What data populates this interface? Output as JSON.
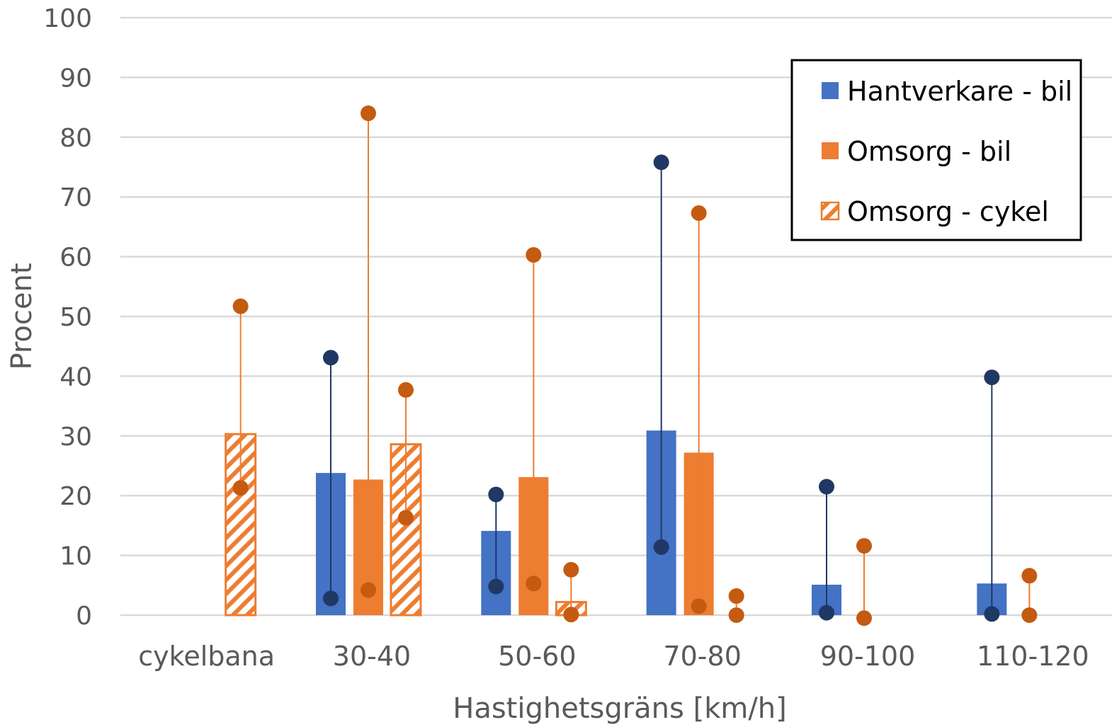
{
  "chart_data": {
    "type": "bar",
    "title": "",
    "xlabel": "Hastighetsgräns [km/h]",
    "ylabel": "Procent",
    "ylim": [
      0,
      100
    ],
    "yticks": [
      0,
      10,
      20,
      30,
      40,
      50,
      60,
      70,
      80,
      90,
      100
    ],
    "grid": true,
    "legend_position": "top-right",
    "categories": [
      "cykelbana",
      "30-40",
      "50-60",
      "70-80",
      "90-100",
      "110-120"
    ],
    "series": [
      {
        "name": "Hantverkare - bil",
        "color": "#4472C4",
        "dot_color": "#1F3864",
        "pattern": "solid",
        "values": [
          null,
          23.8,
          14.1,
          30.9,
          5.1,
          5.3
        ],
        "range_low": [
          null,
          2.8,
          4.8,
          11.4,
          0.4,
          0.2
        ],
        "range_high": [
          null,
          43.1,
          20.2,
          75.8,
          21.5,
          39.8
        ]
      },
      {
        "name": "Omsorg - bil",
        "color": "#ED7D31",
        "dot_color": "#C55A11",
        "pattern": "solid",
        "values": [
          null,
          22.7,
          23.1,
          27.2,
          null,
          null
        ],
        "range_low": [
          null,
          4.2,
          5.3,
          1.5,
          -0.5,
          0.0
        ],
        "range_high": [
          null,
          84.0,
          60.3,
          67.3,
          11.6,
          6.6
        ]
      },
      {
        "name": "Omsorg - cykel",
        "color": "#ED7D31",
        "dot_color": "#C55A11",
        "pattern": "hatched",
        "values": [
          30.3,
          28.6,
          2.2,
          null,
          null,
          null
        ],
        "range_low": [
          21.3,
          16.3,
          0.1,
          0.0,
          null,
          null
        ],
        "range_high": [
          51.7,
          37.7,
          7.6,
          3.2,
          null,
          null
        ]
      }
    ]
  }
}
